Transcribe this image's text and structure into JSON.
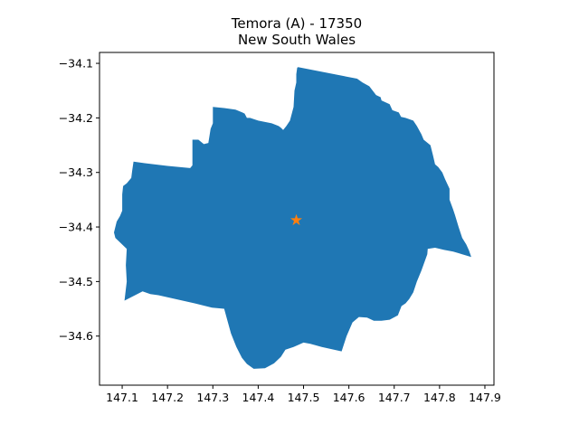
{
  "title_line1": "Temora (A) - 17350",
  "title_line2": "New South Wales",
  "colors": {
    "region_fill": "#1f77b4",
    "marker": "#ff7f0e"
  },
  "chart_data": {
    "type": "map",
    "title": "Temora (A) - 17350\nNew South Wales",
    "xlim": [
      147.05,
      147.92
    ],
    "ylim": [
      -34.69,
      -34.08
    ],
    "x_ticks": [
      147.1,
      147.2,
      147.3,
      147.4,
      147.5,
      147.6,
      147.7,
      147.8,
      147.9
    ],
    "x_tick_labels": [
      "147.1",
      "147.2",
      "147.3",
      "147.4",
      "147.5",
      "147.6",
      "147.7",
      "147.8",
      "147.9"
    ],
    "y_ticks": [
      -34.1,
      -34.2,
      -34.3,
      -34.4,
      -34.5,
      -34.6
    ],
    "y_tick_labels": [
      "−34.1",
      "−34.2",
      "−34.3",
      "−34.4",
      "−34.5",
      "−34.6"
    ],
    "grid": false,
    "centroid": {
      "lon": 147.484,
      "lat": -34.388,
      "marker": "star"
    },
    "boundary": [
      [
        147.488,
        -34.107
      ],
      [
        147.618,
        -34.128
      ],
      [
        147.63,
        -34.135
      ],
      [
        147.645,
        -34.142
      ],
      [
        147.66,
        -34.158
      ],
      [
        147.67,
        -34.162
      ],
      [
        147.672,
        -34.168
      ],
      [
        147.69,
        -34.175
      ],
      [
        147.696,
        -34.186
      ],
      [
        147.71,
        -34.19
      ],
      [
        147.715,
        -34.198
      ],
      [
        147.725,
        -34.2
      ],
      [
        147.742,
        -34.205
      ],
      [
        147.75,
        -34.215
      ],
      [
        147.76,
        -34.23
      ],
      [
        147.765,
        -34.24
      ],
      [
        147.78,
        -34.25
      ],
      [
        147.786,
        -34.27
      ],
      [
        147.79,
        -34.285
      ],
      [
        147.797,
        -34.29
      ],
      [
        147.806,
        -34.3
      ],
      [
        147.812,
        -34.312
      ],
      [
        147.822,
        -34.33
      ],
      [
        147.822,
        -34.35
      ],
      [
        147.83,
        -34.368
      ],
      [
        147.834,
        -34.378
      ],
      [
        147.842,
        -34.4
      ],
      [
        147.85,
        -34.42
      ],
      [
        147.859,
        -34.432
      ],
      [
        147.865,
        -34.443
      ],
      [
        147.87,
        -34.455
      ],
      [
        147.85,
        -34.45
      ],
      [
        147.83,
        -34.445
      ],
      [
        147.81,
        -34.442
      ],
      [
        147.79,
        -34.438
      ],
      [
        147.774,
        -34.44
      ],
      [
        147.773,
        -34.45
      ],
      [
        147.76,
        -34.48
      ],
      [
        147.75,
        -34.5
      ],
      [
        147.742,
        -34.52
      ],
      [
        147.733,
        -34.532
      ],
      [
        147.725,
        -34.54
      ],
      [
        147.716,
        -34.545
      ],
      [
        147.708,
        -34.562
      ],
      [
        147.69,
        -34.57
      ],
      [
        147.672,
        -34.572
      ],
      [
        147.655,
        -34.572
      ],
      [
        147.64,
        -34.566
      ],
      [
        147.622,
        -34.565
      ],
      [
        147.608,
        -34.575
      ],
      [
        147.595,
        -34.6
      ],
      [
        147.584,
        -34.628
      ],
      [
        147.54,
        -34.62
      ],
      [
        147.515,
        -34.614
      ],
      [
        147.5,
        -34.612
      ],
      [
        147.478,
        -34.62
      ],
      [
        147.46,
        -34.625
      ],
      [
        147.45,
        -34.638
      ],
      [
        147.435,
        -34.65
      ],
      [
        147.415,
        -34.659
      ],
      [
        147.39,
        -34.66
      ],
      [
        147.375,
        -34.651
      ],
      [
        147.364,
        -34.64
      ],
      [
        147.352,
        -34.62
      ],
      [
        147.34,
        -34.595
      ],
      [
        147.33,
        -34.565
      ],
      [
        147.325,
        -34.55
      ],
      [
        147.298,
        -34.548
      ],
      [
        147.26,
        -34.54
      ],
      [
        147.18,
        -34.525
      ],
      [
        147.162,
        -34.523
      ],
      [
        147.145,
        -34.518
      ],
      [
        147.105,
        -34.535
      ],
      [
        147.11,
        -34.5
      ],
      [
        147.108,
        -34.47
      ],
      [
        147.11,
        -34.44
      ],
      [
        147.085,
        -34.42
      ],
      [
        147.082,
        -34.41
      ],
      [
        147.085,
        -34.4
      ],
      [
        147.088,
        -34.39
      ],
      [
        147.095,
        -34.38
      ],
      [
        147.1,
        -34.37
      ],
      [
        147.1,
        -34.355
      ],
      [
        147.1,
        -34.34
      ],
      [
        147.102,
        -34.325
      ],
      [
        147.11,
        -34.32
      ],
      [
        147.12,
        -34.31
      ],
      [
        147.122,
        -34.297
      ],
      [
        147.125,
        -34.28
      ],
      [
        147.15,
        -34.283
      ],
      [
        147.2,
        -34.288
      ],
      [
        147.25,
        -34.292
      ],
      [
        147.255,
        -34.287
      ],
      [
        147.255,
        -34.27
      ],
      [
        147.255,
        -34.24
      ],
      [
        147.268,
        -34.24
      ],
      [
        147.28,
        -34.248
      ],
      [
        147.29,
        -34.246
      ],
      [
        147.295,
        -34.22
      ],
      [
        147.3,
        -34.21
      ],
      [
        147.3,
        -34.18
      ],
      [
        147.325,
        -34.182
      ],
      [
        147.35,
        -34.185
      ],
      [
        147.365,
        -34.19
      ],
      [
        147.37,
        -34.192
      ],
      [
        147.375,
        -34.2
      ],
      [
        147.382,
        -34.2
      ],
      [
        147.4,
        -34.205
      ],
      [
        147.43,
        -34.21
      ],
      [
        147.445,
        -34.215
      ],
      [
        147.45,
        -34.218
      ],
      [
        147.455,
        -34.222
      ],
      [
        147.462,
        -34.215
      ],
      [
        147.47,
        -34.205
      ],
      [
        147.478,
        -34.18
      ],
      [
        147.48,
        -34.15
      ],
      [
        147.484,
        -34.135
      ],
      [
        147.484,
        -34.12
      ],
      [
        147.486,
        -34.108
      ]
    ]
  }
}
